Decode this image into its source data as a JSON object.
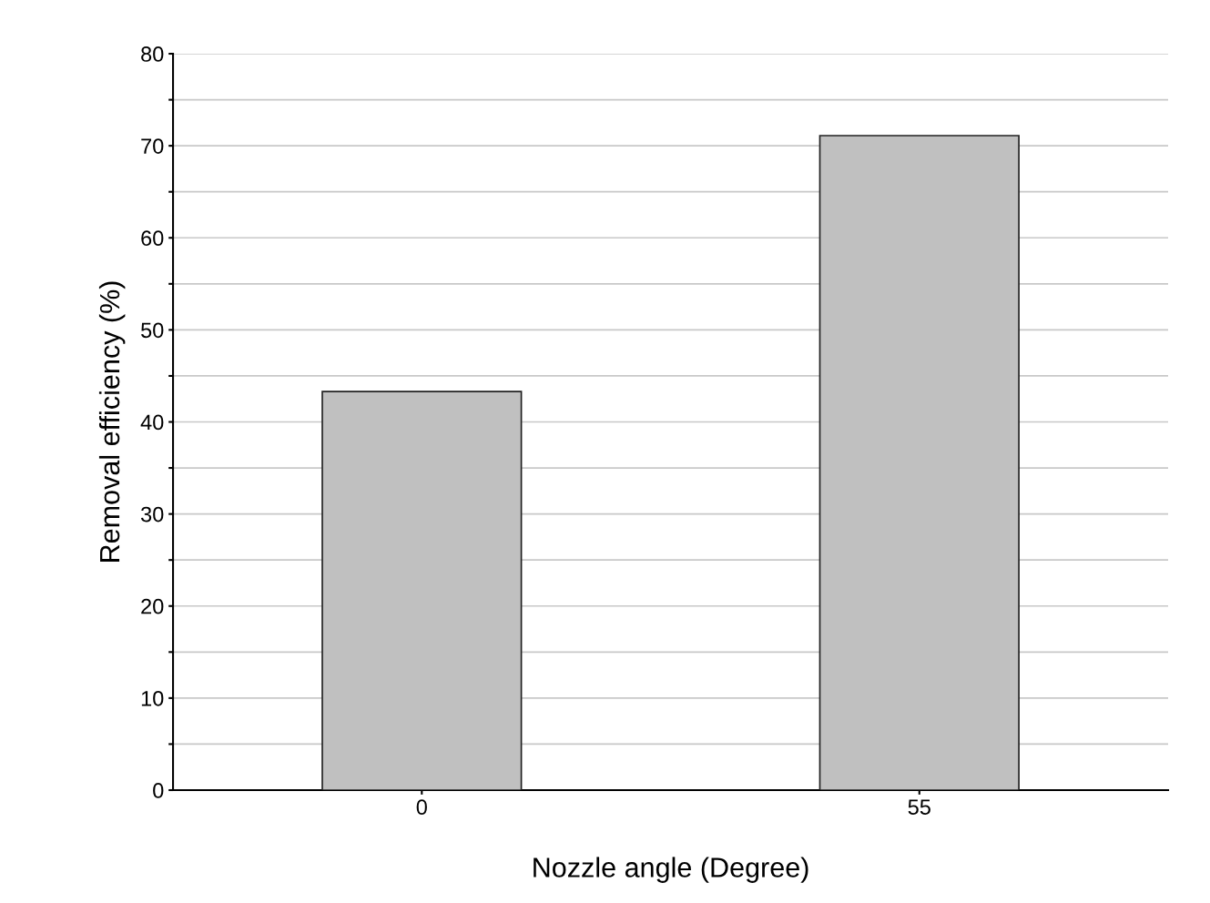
{
  "chart_data": {
    "type": "bar",
    "xlabel": "Nozzle angle (Degree)",
    "ylabel": "Removal efficiency (%)",
    "categories": [
      "0",
      "55"
    ],
    "values": [
      43.3,
      71.1
    ],
    "color": "#c0c0c0",
    "ylim": [
      0,
      80
    ],
    "yticks": [
      0,
      {
        "value": 5,
        "label": null
      },
      10,
      {
        "value": 15,
        "label": null
      },
      20,
      {
        "value": 25,
        "label": null
      },
      30,
      {
        "value": 35,
        "label": null
      },
      40,
      {
        "value": 45,
        "label": null
      },
      50,
      {
        "value": 55,
        "label": null
      },
      60,
      {
        "value": 65,
        "label": null
      },
      70,
      {
        "value": 75,
        "label": null
      },
      80
    ],
    "grid": "y"
  }
}
